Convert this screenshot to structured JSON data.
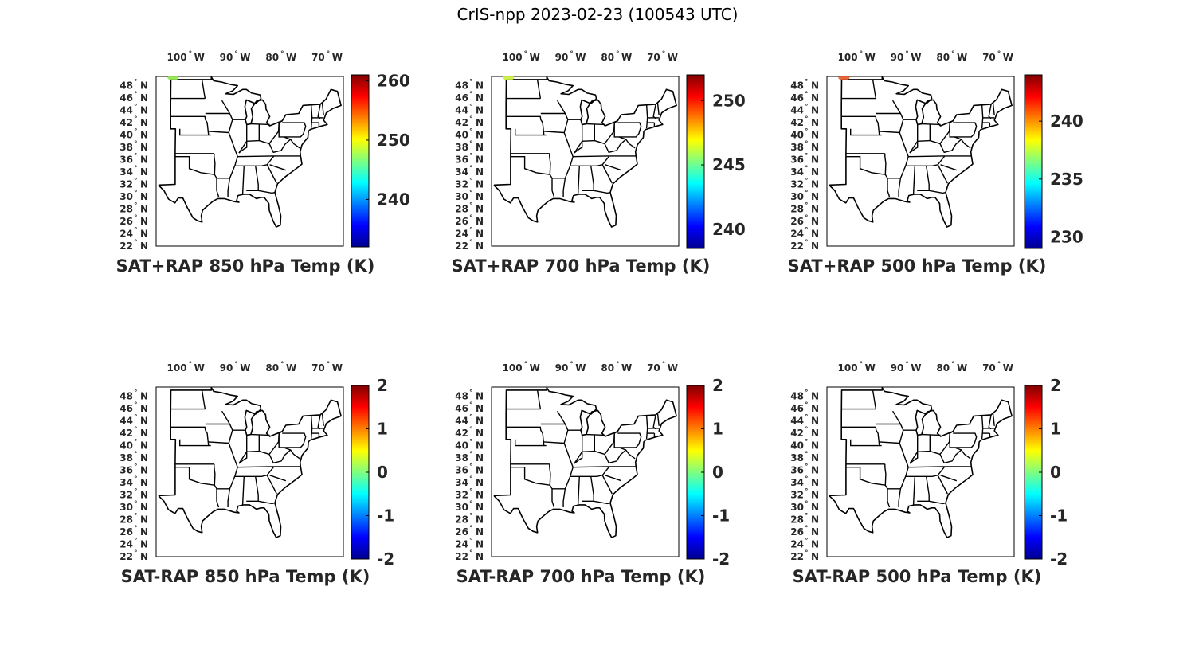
{
  "figure": {
    "title": "CrIS-npp 2023-02-23 (100543 UTC)"
  },
  "lon_ticks": [
    {
      "deg": "100",
      "hemi": "W"
    },
    {
      "deg": "90",
      "hemi": "W"
    },
    {
      "deg": "80",
      "hemi": "W"
    },
    {
      "deg": "70",
      "hemi": "W"
    }
  ],
  "lat_ticks": [
    {
      "deg": "48",
      "hemi": "N"
    },
    {
      "deg": "46",
      "hemi": "N"
    },
    {
      "deg": "44",
      "hemi": "N"
    },
    {
      "deg": "42",
      "hemi": "N"
    },
    {
      "deg": "40",
      "hemi": "N"
    },
    {
      "deg": "38",
      "hemi": "N"
    },
    {
      "deg": "36",
      "hemi": "N"
    },
    {
      "deg": "34",
      "hemi": "N"
    },
    {
      "deg": "32",
      "hemi": "N"
    },
    {
      "deg": "30",
      "hemi": "N"
    },
    {
      "deg": "28",
      "hemi": "N"
    },
    {
      "deg": "26",
      "hemi": "N"
    },
    {
      "deg": "24",
      "hemi": "N"
    },
    {
      "deg": "22",
      "hemi": "N"
    }
  ],
  "colormap": "jet",
  "panels": [
    {
      "title": "SAT+RAP 850 hPa Temp (K)",
      "cbar_ticks": [
        "260",
        "250",
        "240"
      ],
      "cbar_range": [
        232,
        261
      ],
      "cbar_tick_values": [
        260,
        250,
        240
      ],
      "spot": {
        "color": "#8fe34a",
        "lon": -103.5,
        "lat": 49.3
      }
    },
    {
      "title": "SAT+RAP 700 hPa Temp (K)",
      "cbar_ticks": [
        "250",
        "245",
        "240"
      ],
      "cbar_range": [
        238.5,
        252
      ],
      "cbar_tick_values": [
        250,
        245,
        240
      ],
      "spot": {
        "color": "#c8f03c",
        "lon": -103.5,
        "lat": 49.3
      }
    },
    {
      "title": "SAT+RAP 500 hPa Temp (K)",
      "cbar_ticks": [
        "240",
        "235",
        "230"
      ],
      "cbar_range": [
        229,
        244
      ],
      "cbar_tick_values": [
        240,
        235,
        230
      ],
      "spot": {
        "color": "#e3582a",
        "lon": -103.5,
        "lat": 49.3
      }
    },
    {
      "title": "SAT-RAP 850 hPa Temp (K)",
      "cbar_ticks": [
        "2",
        "1",
        "0",
        "-1",
        "-2"
      ],
      "cbar_range": [
        -2,
        2
      ],
      "cbar_tick_values": [
        2,
        1,
        0,
        -1,
        -2
      ]
    },
    {
      "title": "SAT-RAP 700 hPa Temp (K)",
      "cbar_ticks": [
        "2",
        "1",
        "0",
        "-1",
        "-2"
      ],
      "cbar_range": [
        -2,
        2
      ],
      "cbar_tick_values": [
        2,
        1,
        0,
        -1,
        -2
      ]
    },
    {
      "title": "SAT-RAP 500 hPa Temp (K)",
      "cbar_ticks": [
        "2",
        "1",
        "0",
        "-1",
        "-2"
      ],
      "cbar_range": [
        -2,
        2
      ],
      "cbar_tick_values": [
        2,
        1,
        0,
        -1,
        -2
      ]
    }
  ]
}
